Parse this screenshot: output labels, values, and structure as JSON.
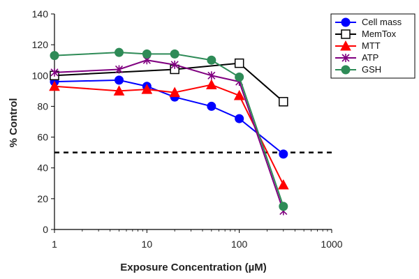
{
  "chart_data": {
    "type": "line",
    "xlabel": "Exposure Concentration (µM)",
    "ylabel": "% Control",
    "xscale": "log",
    "xlim": [
      1,
      1000
    ],
    "ylim": [
      0,
      140
    ],
    "xticks": [
      "1",
      "10",
      "100",
      "1000"
    ],
    "yticks": [
      "0",
      "20",
      "40",
      "60",
      "80",
      "100",
      "120",
      "140"
    ],
    "grid": false,
    "legend_position": "top-right",
    "reference_line": {
      "y": 50,
      "style": "dashed"
    },
    "series": [
      {
        "name": "Cell mass",
        "color": "#0000ff",
        "marker": "circle",
        "x": [
          1,
          5,
          10,
          20,
          50,
          100,
          300
        ],
        "y": [
          96,
          97,
          93,
          86,
          80,
          72,
          49
        ]
      },
      {
        "name": "MemTox",
        "color": "#000000",
        "marker": "open-square",
        "x": [
          1,
          20,
          100,
          300
        ],
        "y": [
          100,
          104,
          108,
          83
        ]
      },
      {
        "name": "MTT",
        "color": "#ff0000",
        "marker": "triangle",
        "x": [
          1,
          5,
          10,
          20,
          50,
          100,
          300
        ],
        "y": [
          93,
          90,
          91,
          89,
          94,
          87,
          29
        ]
      },
      {
        "name": "ATP",
        "color": "#800080",
        "marker": "asterisk",
        "x": [
          1,
          5,
          10,
          20,
          50,
          100,
          300
        ],
        "y": [
          102,
          104,
          110,
          107,
          100,
          96,
          12
        ]
      },
      {
        "name": "GSH",
        "color": "#2e8b57",
        "marker": "circle",
        "x": [
          1,
          5,
          10,
          20,
          50,
          100,
          300
        ],
        "y": [
          113,
          115,
          114,
          114,
          110,
          99,
          15
        ]
      }
    ]
  }
}
